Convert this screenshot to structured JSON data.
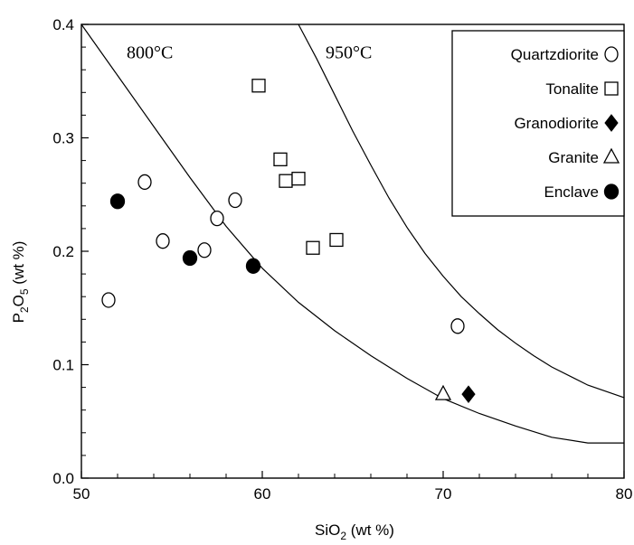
{
  "chart_data": {
    "type": "scatter",
    "xlabel": {
      "main": "SiO",
      "sub": "2",
      "unit": " (wt %)"
    },
    "ylabel": {
      "main": "P",
      "sub1": "2",
      "mid": "O",
      "sub2": "5",
      "unit": " (wt %)"
    },
    "xlim": [
      50,
      80
    ],
    "ylim": [
      0.0,
      0.4
    ],
    "x_ticks": [
      50,
      60,
      70,
      80
    ],
    "y_ticks": [
      0.0,
      0.1,
      0.2,
      0.3,
      0.4
    ],
    "x_tick_labels": [
      "50",
      "60",
      "70",
      "80"
    ],
    "y_tick_labels": [
      "0.0",
      "0.1",
      "0.2",
      "0.3",
      "0.4"
    ],
    "grid": false,
    "legend_position": "top-right",
    "series": [
      {
        "name": "Quartzdiorite",
        "marker": "circle-open",
        "points": [
          [
            51.5,
            0.157
          ],
          [
            53.5,
            0.261
          ],
          [
            54.5,
            0.209
          ],
          [
            56.8,
            0.201
          ],
          [
            57.5,
            0.229
          ],
          [
            58.5,
            0.245
          ],
          [
            70.8,
            0.134
          ]
        ]
      },
      {
        "name": "Tonalite",
        "marker": "square-open",
        "points": [
          [
            59.8,
            0.346
          ],
          [
            61.0,
            0.281
          ],
          [
            61.3,
            0.262
          ],
          [
            62.0,
            0.264
          ],
          [
            62.8,
            0.203
          ],
          [
            64.1,
            0.21
          ]
        ]
      },
      {
        "name": "Granodiorite",
        "marker": "diamond-filled",
        "points": [
          [
            71.4,
            0.074
          ]
        ]
      },
      {
        "name": "Granite",
        "marker": "triangle-open",
        "points": [
          [
            70.0,
            0.074
          ]
        ]
      },
      {
        "name": "Enclave",
        "marker": "circle-filled",
        "points": [
          [
            52.0,
            0.244
          ],
          [
            56.0,
            0.194
          ],
          [
            59.5,
            0.187
          ]
        ]
      }
    ],
    "curves": [
      {
        "name": "800°C",
        "points": [
          [
            50.0,
            0.4
          ],
          [
            52.0,
            0.355
          ],
          [
            54.0,
            0.31
          ],
          [
            56.0,
            0.265
          ],
          [
            58.0,
            0.222
          ],
          [
            60.0,
            0.185
          ],
          [
            62.0,
            0.155
          ],
          [
            64.0,
            0.13
          ],
          [
            66.0,
            0.108
          ],
          [
            68.0,
            0.088
          ],
          [
            70.0,
            0.07
          ],
          [
            72.0,
            0.057
          ],
          [
            74.0,
            0.046
          ],
          [
            76.0,
            0.036
          ],
          [
            78.0,
            0.031
          ],
          [
            80.0,
            0.031
          ]
        ]
      },
      {
        "name": "950°C",
        "points": [
          [
            62.0,
            0.4
          ],
          [
            63.0,
            0.37
          ],
          [
            64.0,
            0.338
          ],
          [
            65.0,
            0.306
          ],
          [
            66.0,
            0.276
          ],
          [
            67.0,
            0.247
          ],
          [
            68.0,
            0.221
          ],
          [
            69.0,
            0.198
          ],
          [
            70.0,
            0.178
          ],
          [
            71.0,
            0.16
          ],
          [
            72.0,
            0.145
          ],
          [
            73.0,
            0.131
          ],
          [
            74.0,
            0.119
          ],
          [
            75.0,
            0.108
          ],
          [
            76.0,
            0.098
          ],
          [
            78.0,
            0.082
          ],
          [
            80.0,
            0.071
          ]
        ]
      }
    ],
    "annotations": [
      {
        "text": "800°C",
        "x": 52.5,
        "y": 0.37
      },
      {
        "text": "950°C",
        "x": 63.5,
        "y": 0.37
      }
    ]
  }
}
